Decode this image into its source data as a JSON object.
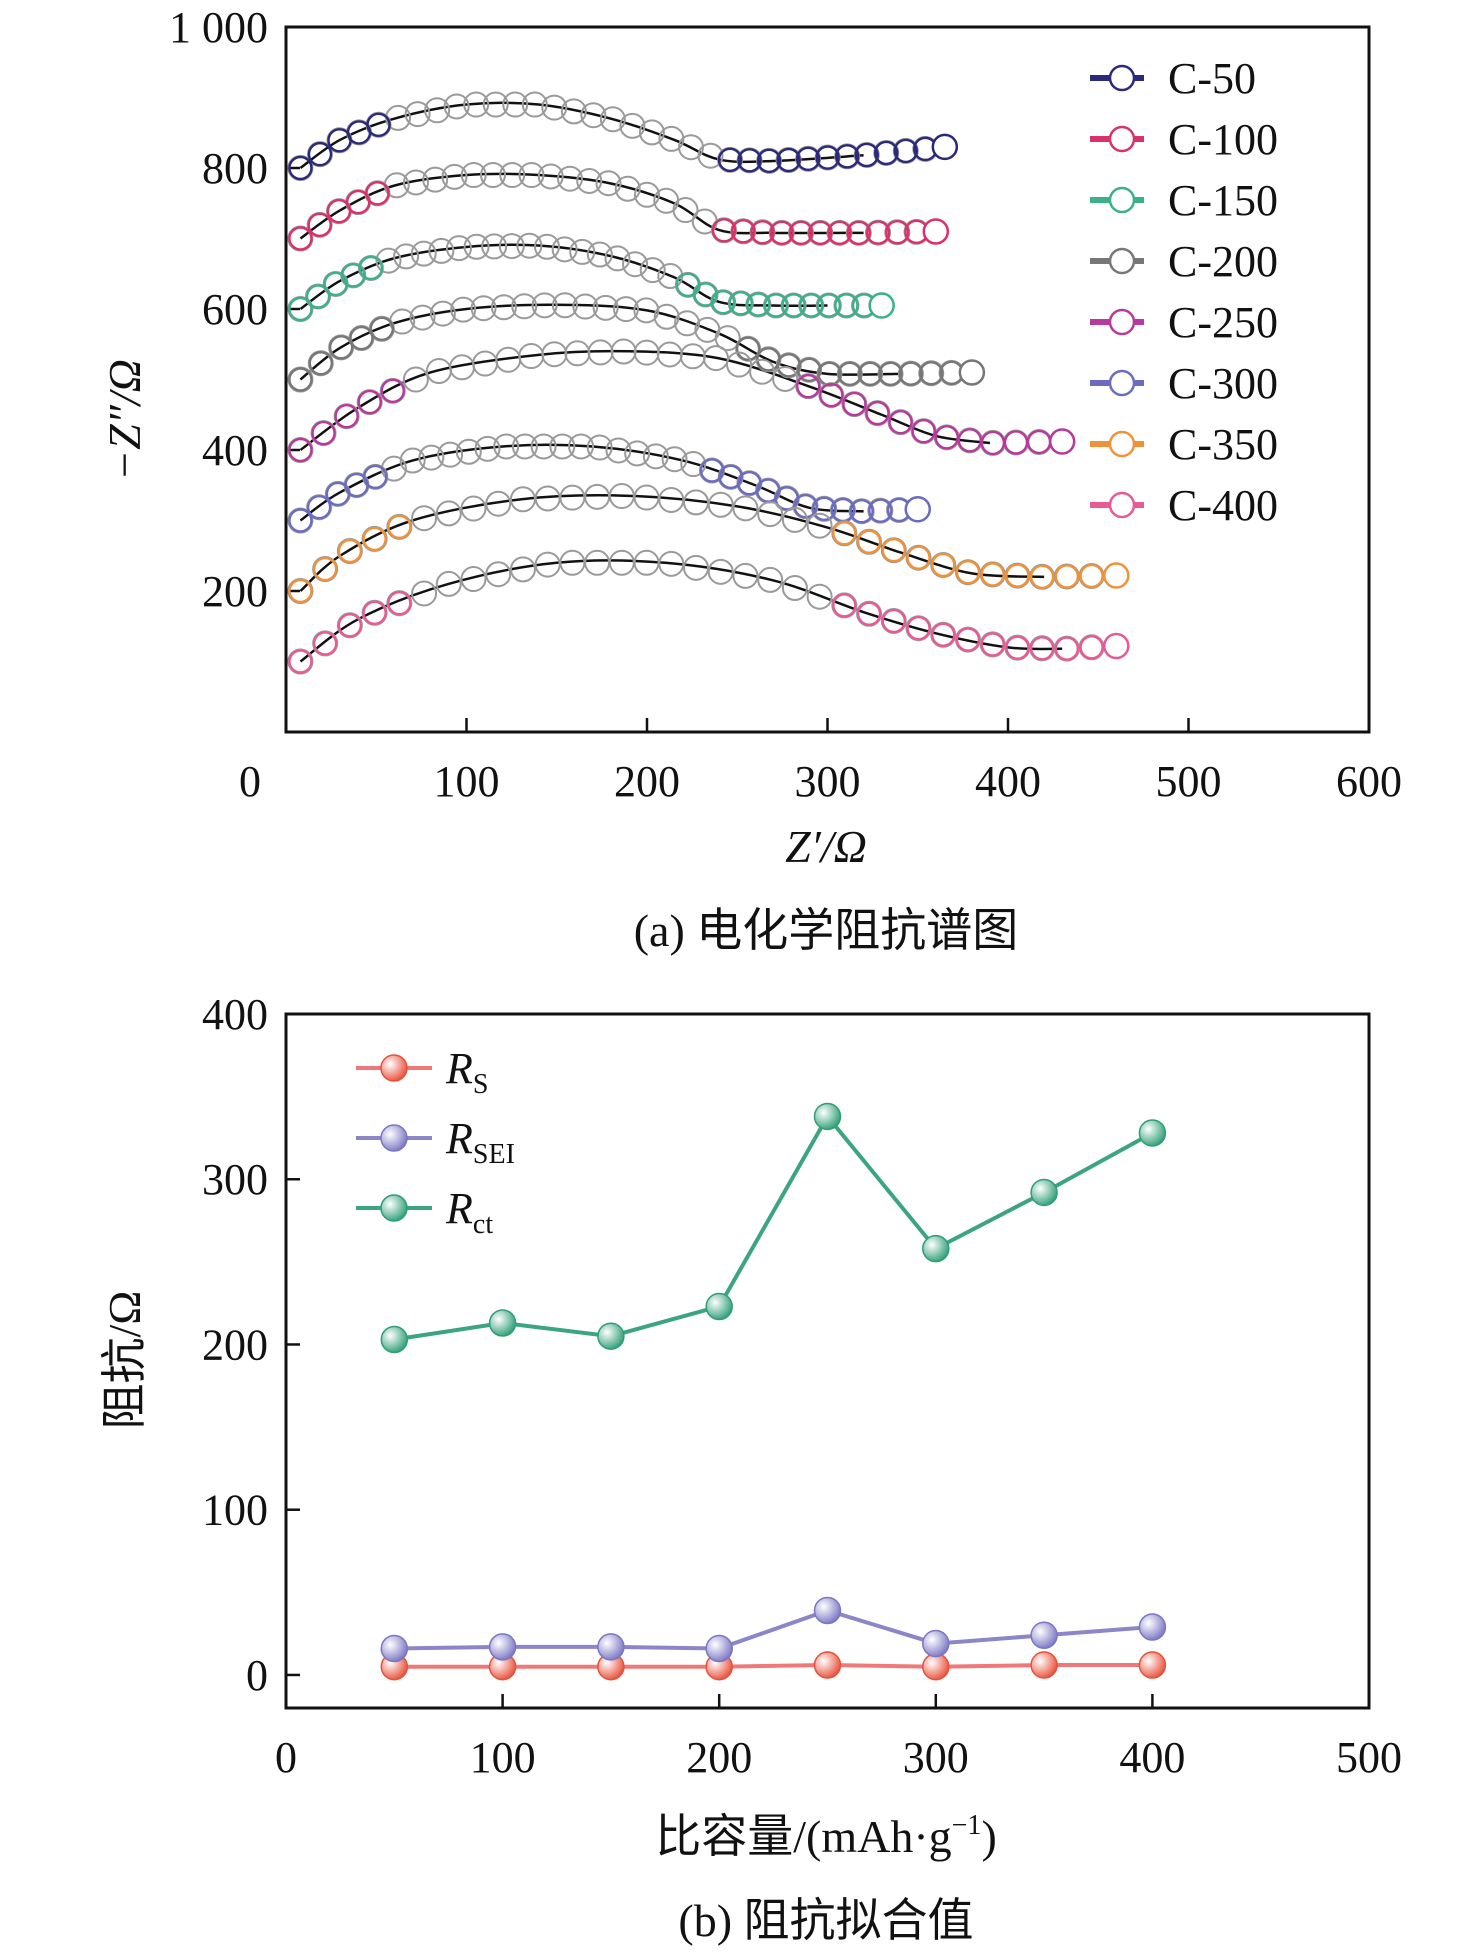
{
  "chart_data": [
    {
      "type": "scatter",
      "panel": "a",
      "caption": "(a) 电化学阻抗谱图",
      "xlabel": "Z′/Ω",
      "ylabel": "−Z″/Ω",
      "xlim": [
        0,
        600
      ],
      "ylim": [
        0,
        1000
      ],
      "xticks": [
        "0",
        "100",
        "200",
        "300",
        "400",
        "500",
        "600"
      ],
      "yticks": [
        "200",
        "400",
        "600",
        "800",
        "1 000"
      ],
      "legend_position": "top-right",
      "fit_color": "#111111",
      "series": [
        {
          "name": "C-50",
          "color": "#2b2a7a",
          "points": [
            [
              8,
              800
            ],
            [
              30,
              840
            ],
            [
              60,
              870
            ],
            [
              100,
              890
            ],
            [
              140,
              890
            ],
            [
              180,
              870
            ],
            [
              215,
              840
            ],
            [
              240,
              812
            ],
            [
              270,
              810
            ],
            [
              320,
              818
            ],
            [
              365,
              830
            ]
          ]
        },
        {
          "name": "C-100",
          "color": "#d9326a",
          "points": [
            [
              8,
              700
            ],
            [
              30,
              740
            ],
            [
              60,
              775
            ],
            [
              100,
              790
            ],
            [
              140,
              790
            ],
            [
              180,
              778
            ],
            [
              215,
              750
            ],
            [
              240,
              712
            ],
            [
              270,
              708
            ],
            [
              320,
              708
            ],
            [
              360,
              710
            ]
          ]
        },
        {
          "name": "C-150",
          "color": "#3bb08a",
          "points": [
            [
              8,
              600
            ],
            [
              30,
              640
            ],
            [
              60,
              672
            ],
            [
              100,
              688
            ],
            [
              140,
              690
            ],
            [
              180,
              675
            ],
            [
              215,
              645
            ],
            [
              240,
              610
            ],
            [
              270,
              605
            ],
            [
              300,
              605
            ],
            [
              330,
              605
            ]
          ]
        },
        {
          "name": "C-200",
          "color": "#777777",
          "points": [
            [
              8,
              500
            ],
            [
              30,
              545
            ],
            [
              60,
              580
            ],
            [
              100,
              600
            ],
            [
              150,
              606
            ],
            [
              200,
              598
            ],
            [
              240,
              565
            ],
            [
              270,
              525
            ],
            [
              300,
              508
            ],
            [
              340,
              508
            ],
            [
              380,
              510
            ]
          ]
        },
        {
          "name": "C-250",
          "color": "#b8399e",
          "points": [
            [
              8,
              400
            ],
            [
              40,
              460
            ],
            [
              80,
              510
            ],
            [
              140,
              535
            ],
            [
              190,
              540
            ],
            [
              240,
              530
            ],
            [
              290,
              490
            ],
            [
              330,
              450
            ],
            [
              360,
              420
            ],
            [
              390,
              410
            ],
            [
              430,
              412
            ]
          ]
        },
        {
          "name": "C-300",
          "color": "#6a6cc0",
          "points": [
            [
              8,
              300
            ],
            [
              30,
              340
            ],
            [
              70,
              385
            ],
            [
              120,
              405
            ],
            [
              170,
              405
            ],
            [
              220,
              385
            ],
            [
              260,
              350
            ],
            [
              290,
              318
            ],
            [
              320,
              313
            ],
            [
              350,
              316
            ]
          ]
        },
        {
          "name": "C-350",
          "color": "#f0923a",
          "points": [
            [
              8,
              200
            ],
            [
              30,
              250
            ],
            [
              70,
              300
            ],
            [
              130,
              330
            ],
            [
              190,
              335
            ],
            [
              250,
              320
            ],
            [
              300,
              290
            ],
            [
              340,
              255
            ],
            [
              380,
              225
            ],
            [
              420,
              220
            ],
            [
              460,
              222
            ]
          ]
        },
        {
          "name": "C-400",
          "color": "#e85a95",
          "points": [
            [
              8,
              100
            ],
            [
              40,
              160
            ],
            [
              90,
              210
            ],
            [
              150,
              240
            ],
            [
              210,
              240
            ],
            [
              270,
              215
            ],
            [
              320,
              170
            ],
            [
              360,
              140
            ],
            [
              400,
              120
            ],
            [
              430,
              118
            ],
            [
              460,
              122
            ]
          ]
        }
      ]
    },
    {
      "type": "line",
      "panel": "b",
      "caption": "(b) 阻抗拟合值",
      "xlabel": "比容量/(mAh·g⁻¹)",
      "ylabel": "阻抗/Ω",
      "xlim": [
        0,
        500
      ],
      "ylim": [
        -20,
        400
      ],
      "xticks": [
        "0",
        "100",
        "200",
        "300",
        "400",
        "500"
      ],
      "yticks": [
        "0",
        "100",
        "200",
        "300",
        "400"
      ],
      "legend_position": "top-left",
      "x": [
        50,
        100,
        150,
        200,
        250,
        300,
        350,
        400
      ],
      "series": [
        {
          "name": "R",
          "sub": "S",
          "color": "#f07878",
          "marker": "#e8503a",
          "values": [
            5,
            5,
            5,
            5,
            6,
            5,
            6,
            6
          ]
        },
        {
          "name": "R",
          "sub": "SEI",
          "color": "#8a86c8",
          "marker": "#7a76c4",
          "values": [
            16,
            17,
            17,
            16,
            39,
            19,
            24,
            29
          ]
        },
        {
          "name": "R",
          "sub": "ct",
          "color": "#3aa57e",
          "marker": "#2e9e76",
          "values": [
            203,
            213,
            205,
            223,
            338,
            258,
            292,
            328
          ]
        }
      ]
    }
  ]
}
